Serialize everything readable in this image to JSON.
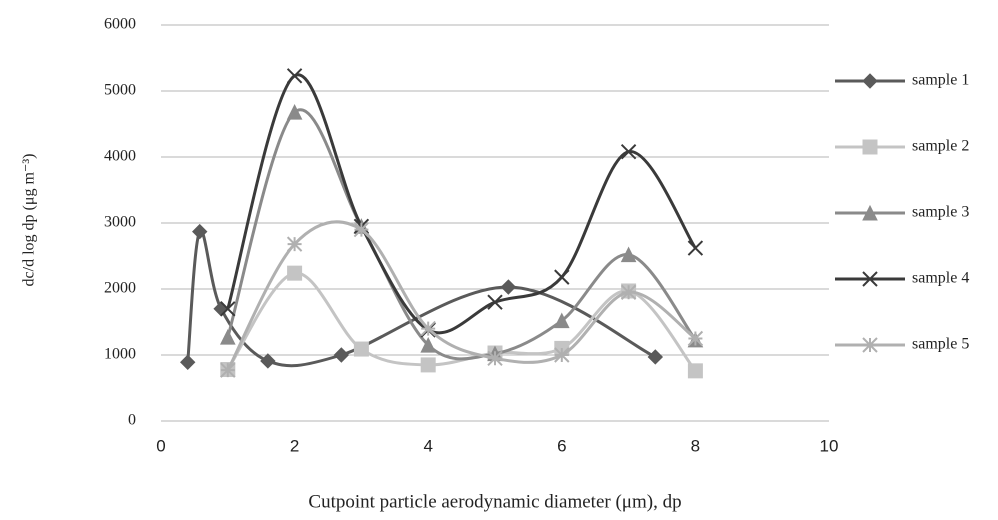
{
  "chart_data": {
    "type": "line",
    "x_label": "Cutpoint particle aerodynamic diameter (μm), dp",
    "y_label": "dc/d log dp (μg m⁻³)",
    "xlim": [
      0,
      10
    ],
    "xticks": [
      0,
      2,
      4,
      6,
      8,
      10
    ],
    "ylim": [
      0,
      6000
    ],
    "yticks": [
      0,
      1000,
      2000,
      3000,
      4000,
      5000,
      6000
    ],
    "grid": true,
    "legend": "right",
    "series": [
      {
        "name": "sample 1",
        "color": "#5a5a5a",
        "marker": "diamond",
        "x": [
          0.4,
          0.58,
          0.9,
          1.6,
          2.7,
          5.2,
          7.4
        ],
        "values": [
          890,
          2870,
          1700,
          910,
          1000,
          2030,
          970
        ]
      },
      {
        "name": "sample 2",
        "color": "#c4c4c4",
        "marker": "square",
        "x": [
          1,
          2,
          3,
          4,
          5,
          6,
          7,
          8
        ],
        "values": [
          780,
          2240,
          1090,
          850,
          1030,
          1100,
          1970,
          760
        ]
      },
      {
        "name": "sample 3",
        "color": "#8a8a8a",
        "marker": "triangle",
        "x": [
          1,
          2,
          3,
          4,
          5,
          6,
          7,
          8
        ],
        "values": [
          1270,
          4680,
          2950,
          1150,
          1020,
          1520,
          2520,
          1230
        ]
      },
      {
        "name": "sample 4",
        "color": "#3a3a3a",
        "marker": "x",
        "x": [
          1,
          2,
          3,
          4,
          5,
          6,
          7,
          8
        ],
        "values": [
          1700,
          5230,
          2950,
          1380,
          1800,
          2180,
          4080,
          2620
        ]
      },
      {
        "name": "sample 5",
        "color": "#b0b0b0",
        "marker": "star",
        "x": [
          1,
          2,
          3,
          4,
          5,
          6,
          7,
          8
        ],
        "values": [
          770,
          2680,
          2900,
          1400,
          950,
          1000,
          1950,
          1250
        ]
      }
    ]
  }
}
